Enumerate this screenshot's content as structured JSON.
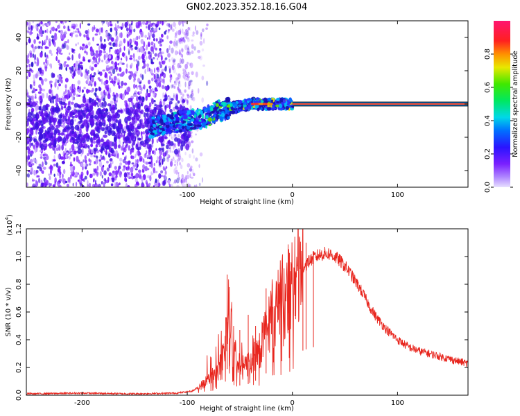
{
  "figure_title": "GN02.2023.352.18.16.G04",
  "chart_data": [
    {
      "type": "heatmap",
      "title": "GN02.2023.352.18.16.G04",
      "xlabel": "Height of straight line (km)",
      "ylabel": "Frequency (Hz)",
      "xlim": [
        -253,
        167
      ],
      "ylim": [
        -50,
        50
      ],
      "x_ticks": [
        -200,
        -100,
        0,
        100
      ],
      "y_ticks": [
        -40,
        -20,
        0,
        20,
        40
      ],
      "colorbar": {
        "label": "Normalized spectral amplitude",
        "range": [
          0,
          1
        ],
        "ticks": [
          0.0,
          0.2,
          0.4,
          0.6,
          0.8
        ],
        "colormap": "rainbow (purple-blue-cyan-green-yellow-orange-red-magenta)"
      },
      "features": {
        "noise_region_x": [
          -253,
          -98
        ],
        "doppler_trend_points": [
          {
            "x": -135,
            "y": -14
          },
          {
            "x": -120,
            "y": -12
          },
          {
            "x": -100,
            "y": -10
          },
          {
            "x": -85,
            "y": -9
          },
          {
            "x": -70,
            "y": -4
          },
          {
            "x": -55,
            "y": -2
          },
          {
            "x": -40,
            "y": 0
          },
          {
            "x": -20,
            "y": 0
          },
          {
            "x": 0,
            "y": 0
          }
        ],
        "stable_carrier_x": [
          0,
          167
        ],
        "stable_carrier_frequency": 0
      }
    },
    {
      "type": "line",
      "title": "",
      "xlabel": "Height of straight line (km)",
      "ylabel": "SNR (10 * v/v)",
      "y_multiplier_label": "(x10",
      "y_multiplier_exp": "4",
      "xlim": [
        -253,
        167
      ],
      "ylim": [
        0,
        1.2
      ],
      "x_ticks": [
        -200,
        -100,
        0,
        100
      ],
      "y_ticks": [
        0.0,
        0.2,
        0.4,
        0.6,
        0.8,
        1.0,
        1.2
      ],
      "series": [
        {
          "color": "#e8261e",
          "envelope": [
            {
              "x": -253,
              "y": 0.01
            },
            {
              "x": -200,
              "y": 0.015
            },
            {
              "x": -150,
              "y": 0.01
            },
            {
              "x": -110,
              "y": 0.015
            },
            {
              "x": -95,
              "y": 0.03
            },
            {
              "x": -85,
              "y": 0.08
            },
            {
              "x": -78,
              "y": 0.13
            },
            {
              "x": -70,
              "y": 0.2
            },
            {
              "x": -65,
              "y": 0.3
            },
            {
              "x": -61,
              "y": 0.62
            },
            {
              "x": -58,
              "y": 0.55
            },
            {
              "x": -55,
              "y": 0.3
            },
            {
              "x": -50,
              "y": 0.2
            },
            {
              "x": -45,
              "y": 0.2
            },
            {
              "x": -40,
              "y": 0.25
            },
            {
              "x": -30,
              "y": 0.35
            },
            {
              "x": -25,
              "y": 0.45
            },
            {
              "x": -20,
              "y": 0.6
            },
            {
              "x": -15,
              "y": 0.62
            },
            {
              "x": -10,
              "y": 0.7
            },
            {
              "x": -5,
              "y": 0.76
            },
            {
              "x": 0,
              "y": 0.78
            },
            {
              "x": 5,
              "y": 0.85
            },
            {
              "x": 10,
              "y": 0.92
            },
            {
              "x": 15,
              "y": 0.96
            },
            {
              "x": 20,
              "y": 0.99
            },
            {
              "x": 25,
              "y": 1.01
            },
            {
              "x": 30,
              "y": 1.02
            },
            {
              "x": 35,
              "y": 1.02
            },
            {
              "x": 40,
              "y": 1.0
            },
            {
              "x": 45,
              "y": 0.97
            },
            {
              "x": 50,
              "y": 0.93
            },
            {
              "x": 55,
              "y": 0.88
            },
            {
              "x": 60,
              "y": 0.82
            },
            {
              "x": 65,
              "y": 0.76
            },
            {
              "x": 70,
              "y": 0.69
            },
            {
              "x": 75,
              "y": 0.62
            },
            {
              "x": 80,
              "y": 0.56
            },
            {
              "x": 90,
              "y": 0.47
            },
            {
              "x": 100,
              "y": 0.4
            },
            {
              "x": 110,
              "y": 0.35
            },
            {
              "x": 120,
              "y": 0.32
            },
            {
              "x": 130,
              "y": 0.3
            },
            {
              "x": 140,
              "y": 0.28
            },
            {
              "x": 150,
              "y": 0.26
            },
            {
              "x": 160,
              "y": 0.24
            },
            {
              "x": 167,
              "y": 0.23
            }
          ],
          "notable_spikes": [
            {
              "x": -62,
              "y": 0.87
            },
            {
              "x": -60,
              "y": 0.78
            },
            {
              "x": -50,
              "y": 0.47
            },
            {
              "x": -42,
              "y": 0.58
            },
            {
              "x": -35,
              "y": 0.5
            },
            {
              "x": -25,
              "y": 0.77
            },
            {
              "x": -10,
              "y": 0.9
            },
            {
              "x": -3,
              "y": 1.02
            },
            {
              "x": 10,
              "y": 1.22
            },
            {
              "x": 13,
              "y": 1.1
            },
            {
              "x": 20,
              "y": 1.04
            }
          ]
        }
      ]
    }
  ]
}
